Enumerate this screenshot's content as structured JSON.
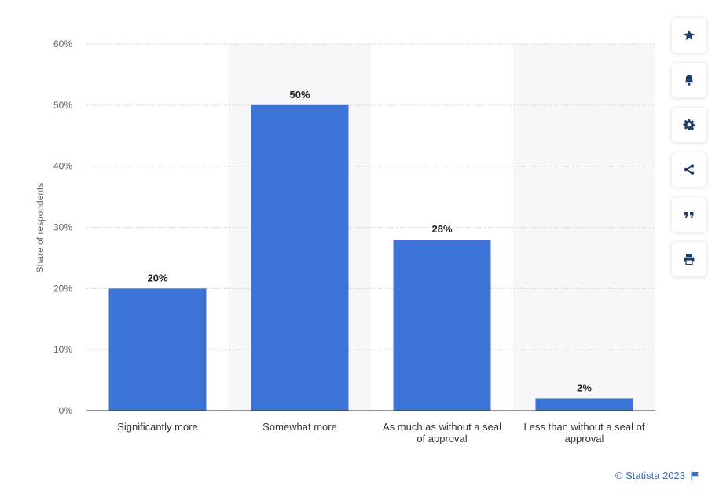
{
  "chart_data": {
    "type": "bar",
    "categories": [
      [
        "Significantly more"
      ],
      [
        "Somewhat more"
      ],
      [
        "As much as without a seal",
        "of approval"
      ],
      [
        "Less than without a seal of",
        "approval"
      ]
    ],
    "values": [
      20,
      50,
      28,
      2
    ],
    "value_labels": [
      "20%",
      "50%",
      "28%",
      "2%"
    ],
    "ylabel": "Share of respondents",
    "ylim": [
      0,
      60
    ],
    "yticks": [
      0,
      10,
      20,
      30,
      40,
      50,
      60
    ],
    "ytick_labels": [
      "0%",
      "10%",
      "20%",
      "30%",
      "40%",
      "50%",
      "60%"
    ],
    "grid": true,
    "bar_color": "#3b74d6",
    "alt_band_color": "#f7f7f9"
  },
  "toolbar": {
    "buttons": [
      "star-icon",
      "bell-icon",
      "gear-icon",
      "share-icon",
      "quote-icon",
      "print-icon"
    ],
    "icon_color": "#1f3f6b"
  },
  "credit": {
    "text": "© Statista 2023",
    "color": "#2f6fbf"
  }
}
